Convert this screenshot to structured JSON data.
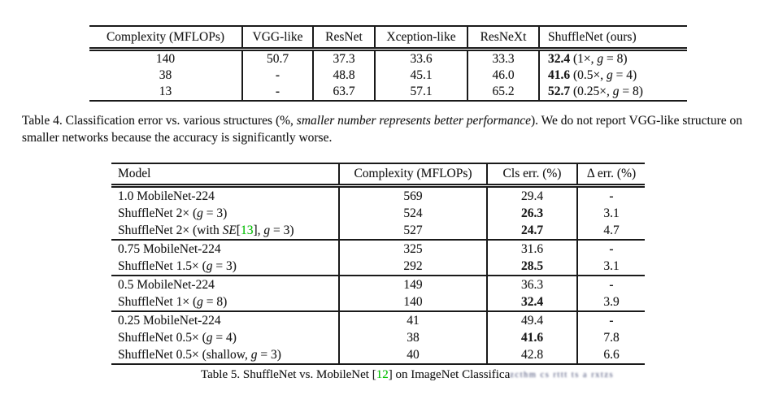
{
  "colors": {
    "background": "#ffffff",
    "text": "#1a1a1a",
    "citation_link": "#00cc00",
    "watermark_smudge": "#39406b"
  },
  "table4": {
    "headers": [
      "Complexity (MFLOPs)",
      "VGG-like",
      "ResNet",
      "Xception-like",
      "ResNeXt",
      "ShuffleNet (ours)"
    ],
    "rows": [
      [
        "140",
        "50.7",
        "37.3",
        "33.6",
        "33.3",
        "**32.4** (1×, *g* = 8)"
      ],
      [
        "38",
        "**-**",
        "48.8",
        "45.1",
        "46.0",
        "**41.6** (0.5×, *g* = 4)"
      ],
      [
        "13",
        "**-**",
        "63.7",
        "57.1",
        "65.2",
        "**52.7** (0.25×, *g* = 8)"
      ]
    ],
    "caption": "Table 4. Classification error vs. various structures (%, *smaller number represents better performance*). We do not report VGG-like structure on smaller networks because the accuracy is significantly worse."
  },
  "table5": {
    "headers": [
      "Model",
      "Complexity (MFLOPs)",
      "Cls err. (%)",
      "Δ err. (%)"
    ],
    "rows": [
      [
        "1.0 MobileNet-224",
        "569",
        "29.4",
        "**-**"
      ],
      [
        "ShuffleNet 2× (*g* = 3)",
        "524",
        "**26.3**",
        "3.1"
      ],
      [
        "ShuffleNet 2× (with *SE*[{13}], *g* = 3)",
        "527",
        "**24.7**",
        "4.7"
      ],
      [
        "0.75 MobileNet-224",
        "325",
        "31.6",
        "**-**"
      ],
      [
        "ShuffleNet 1.5× (*g* = 3)",
        "292",
        "**28.5**",
        "3.1"
      ],
      [
        "0.5 MobileNet-224",
        "149",
        "36.3",
        "**-**"
      ],
      [
        "ShuffleNet 1× (*g* = 8)",
        "140",
        "**32.4**",
        "3.9"
      ],
      [
        "0.25 MobileNet-224",
        "41",
        "49.4",
        "**-**"
      ],
      [
        "ShuffleNet 0.5× (*g* = 4)",
        "38",
        "**41.6**",
        "7.8"
      ],
      [
        "ShuffleNet 0.5× (shallow, *g* = 3)",
        "40",
        "42.8",
        "6.6"
      ]
    ],
    "caption": "Table 5.  ShuffleNet vs. MobileNet [{12}] on ImageNet Classifica",
    "caption_garbled": "zcthm cs rttt ts a rxtzs"
  }
}
